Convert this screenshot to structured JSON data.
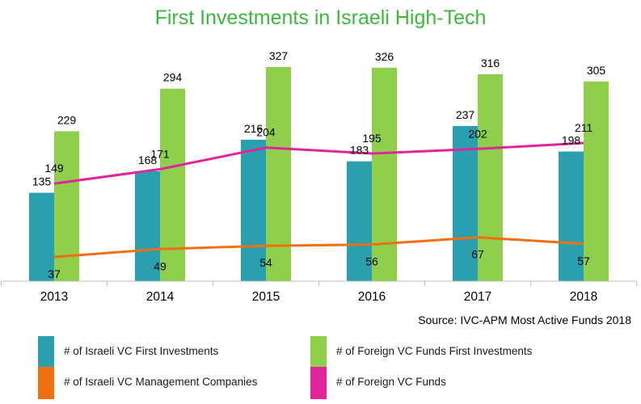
{
  "source": "Source: IVC-APM Most Active Funds 2018",
  "chart_data": {
    "type": "bar",
    "title": "First Investments in Israeli High-Tech",
    "xlabel": "",
    "ylabel": "",
    "categories": [
      "2013",
      "2014",
      "2015",
      "2016",
      "2017",
      "2018"
    ],
    "ylim": [
      0,
      370
    ],
    "grid": false,
    "legend_position": "bottom",
    "series": [
      {
        "name": "# of Israeli VC First Investments",
        "kind": "bar",
        "color": "#2a9fae",
        "values": [
          135,
          168,
          216,
          183,
          237,
          198
        ]
      },
      {
        "name": "# of Foreign VC Funds First Investments",
        "kind": "bar",
        "color": "#8fcf4c",
        "values": [
          229,
          294,
          327,
          326,
          316,
          305
        ]
      },
      {
        "name": "# of Israeli VC Management Companies",
        "kind": "line",
        "color": "#f07010",
        "values": [
          37,
          49,
          54,
          56,
          67,
          57
        ]
      },
      {
        "name": "# of Foreign VC Funds",
        "kind": "line",
        "color": "#e0249a",
        "values": [
          149,
          171,
          204,
          195,
          202,
          211
        ]
      }
    ]
  }
}
